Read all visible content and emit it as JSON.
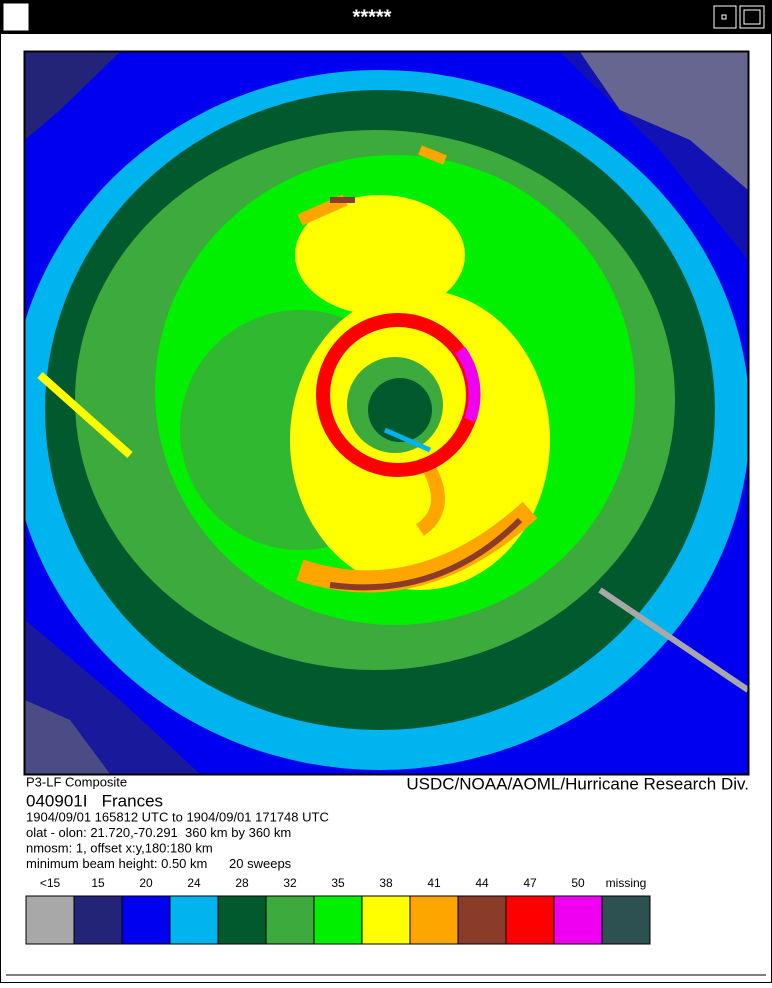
{
  "window": {
    "title": "*****"
  },
  "image": {
    "left_caption": "P3-LF Composite",
    "right_caption": "USDC/NOAA/AOML/Hurricane Research Div."
  },
  "info": {
    "name": "040901I   Frances",
    "lines": [
      "1904/09/01 165812 UTC to 1904/09/01 171748 UTC",
      "olat - olon: 21.720,-70.291  360 km by 360 km",
      "nmosm: 1, offset x:y,180:180 km",
      "minimum beam height: 0.50 km      20 sweeps"
    ]
  },
  "legend": [
    {
      "label": "<15",
      "color": "#a8a8a8"
    },
    {
      "label": "15",
      "color": "#232378"
    },
    {
      "label": "20",
      "color": "#0000f0"
    },
    {
      "label": "24",
      "color": "#00b4f0"
    },
    {
      "label": "28",
      "color": "#005a2d"
    },
    {
      "label": "32",
      "color": "#3caa3c"
    },
    {
      "label": "35",
      "color": "#00f000"
    },
    {
      "label": "38",
      "color": "#ffff00"
    },
    {
      "label": "41",
      "color": "#ffa500"
    },
    {
      "label": "44",
      "color": "#8b3c28"
    },
    {
      "label": "47",
      "color": "#ff0000"
    },
    {
      "label": "50",
      "color": "#f000f0"
    },
    {
      "label": "missing",
      "color": "#2d5050"
    }
  ]
}
